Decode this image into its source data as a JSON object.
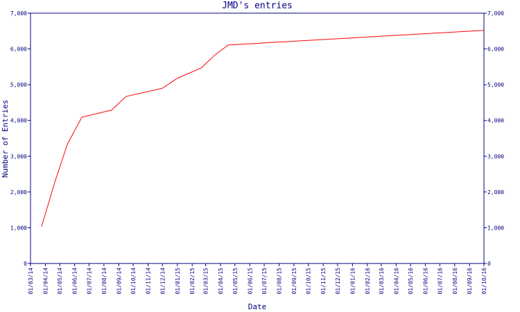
{
  "chart_data": {
    "type": "line",
    "title": "JMD's entries",
    "x_label": "Date",
    "y_label": "Number of Entries",
    "x": [
      "2014-03-24",
      "2014-04-21",
      "2014-05-17",
      "2014-06-16",
      "2014-08-17",
      "2014-09-16",
      "2014-12-01",
      "2015-01-01",
      "2015-02-20",
      "2015-03-21",
      "2015-04-17",
      "2016-10-01"
    ],
    "series": [
      {
        "name": "entries",
        "color": "#ff0000",
        "values": [
          1030,
          2290,
          3340,
          4090,
          4290,
          4670,
          4900,
          5180,
          5470,
          5840,
          6110,
          6520
        ]
      }
    ],
    "xlim": [
      "2014-03-01",
      "2016-10-01"
    ],
    "xticks": [
      {
        "value": "2014-03-01",
        "label": "01/03/14"
      },
      {
        "value": "2014-04-01",
        "label": "01/04/14"
      },
      {
        "value": "2014-05-01",
        "label": "01/05/14"
      },
      {
        "value": "2014-06-01",
        "label": "01/06/14"
      },
      {
        "value": "2014-07-01",
        "label": "01/07/14"
      },
      {
        "value": "2014-08-01",
        "label": "01/08/14"
      },
      {
        "value": "2014-09-01",
        "label": "01/09/14"
      },
      {
        "value": "2014-10-01",
        "label": "01/10/14"
      },
      {
        "value": "2014-11-01",
        "label": "01/11/14"
      },
      {
        "value": "2014-12-01",
        "label": "01/12/14"
      },
      {
        "value": "2015-01-01",
        "label": "01/01/15"
      },
      {
        "value": "2015-02-01",
        "label": "01/02/15"
      },
      {
        "value": "2015-03-01",
        "label": "01/03/15"
      },
      {
        "value": "2015-04-01",
        "label": "01/04/15"
      },
      {
        "value": "2015-05-01",
        "label": "01/05/15"
      },
      {
        "value": "2015-06-01",
        "label": "01/06/15"
      },
      {
        "value": "2015-07-01",
        "label": "01/07/15"
      },
      {
        "value": "2015-08-01",
        "label": "01/08/15"
      },
      {
        "value": "2015-09-01",
        "label": "01/09/15"
      },
      {
        "value": "2015-10-01",
        "label": "01/10/15"
      },
      {
        "value": "2015-11-01",
        "label": "01/11/15"
      },
      {
        "value": "2015-12-01",
        "label": "01/12/15"
      },
      {
        "value": "2016-01-01",
        "label": "01/01/16"
      },
      {
        "value": "2016-02-01",
        "label": "01/02/16"
      },
      {
        "value": "2016-03-01",
        "label": "01/03/16"
      },
      {
        "value": "2016-04-01",
        "label": "01/04/16"
      },
      {
        "value": "2016-05-01",
        "label": "01/05/16"
      },
      {
        "value": "2016-06-01",
        "label": "01/06/16"
      },
      {
        "value": "2016-07-01",
        "label": "01/07/16"
      },
      {
        "value": "2016-08-01",
        "label": "01/08/16"
      },
      {
        "value": "2016-09-01",
        "label": "01/09/16"
      },
      {
        "value": "2016-10-01",
        "label": "01/10/16"
      }
    ],
    "ylim": [
      0,
      7000
    ],
    "yticks": [
      0,
      {
        "value": 1000,
        "label": "1,000"
      },
      {
        "value": 2000,
        "label": "2,000"
      },
      {
        "value": 3000,
        "label": "3,000"
      },
      {
        "value": 4000,
        "label": "4,000"
      },
      {
        "value": 5000,
        "label": "5,000"
      },
      {
        "value": 6000,
        "label": "6,000"
      },
      {
        "value": 7000,
        "label": "7,000"
      }
    ],
    "axis_color": "#000080",
    "grid": false
  }
}
